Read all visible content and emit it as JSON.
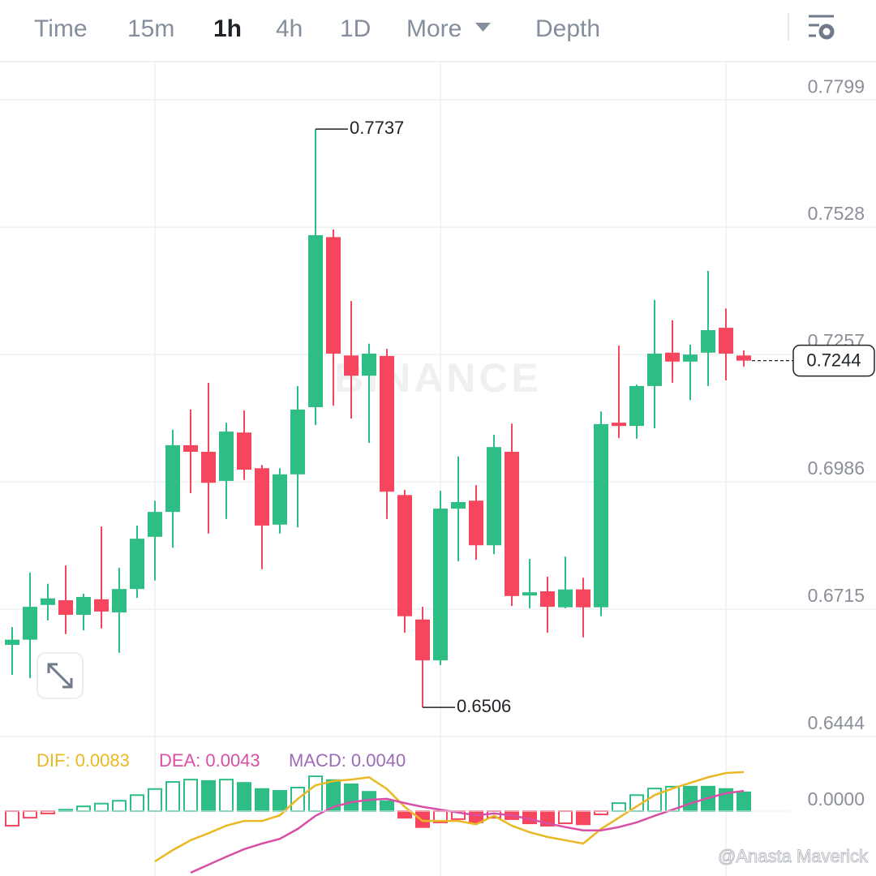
{
  "toolbar": {
    "tabs": [
      "Time",
      "15m",
      "1h",
      "4h",
      "1D",
      "More",
      "Depth"
    ],
    "active_tab": 2
  },
  "watermark": "BINANCE",
  "credit": "@Anasta Maverick",
  "chart_data": [
    {
      "type": "candlestick",
      "up_color": "#2ebd85",
      "down_color": "#f6465d",
      "ylim": [
        0.6444,
        0.7877
      ],
      "yticks": [
        0.6444,
        0.6715,
        0.6986,
        0.7257,
        0.7528,
        0.7799
      ],
      "grid": true,
      "open": [
        0.6639,
        0.665,
        0.6724,
        0.6734,
        0.6703,
        0.6736,
        0.6708,
        0.6758,
        0.6869,
        0.6922,
        0.7064,
        0.705,
        0.6988,
        0.7091,
        0.7015,
        0.6895,
        0.7002,
        0.7145,
        0.7507,
        0.7255,
        0.7212,
        0.7254,
        0.6958,
        0.6693,
        0.6606,
        0.6929,
        0.6946,
        0.6851,
        0.705,
        0.6744,
        0.6753,
        0.6719,
        0.6757,
        0.6719,
        0.7112,
        0.7105,
        0.719,
        0.7261,
        0.7242,
        0.7261,
        0.7314,
        0.7255
      ],
      "high": [
        0.6677,
        0.6793,
        0.6769,
        0.6808,
        0.6748,
        0.6891,
        0.6803,
        0.6893,
        0.6946,
        0.7097,
        0.714,
        0.7197,
        0.7112,
        0.7138,
        0.7022,
        0.7015,
        0.719,
        0.7737,
        0.7523,
        0.7371,
        0.728,
        0.7269,
        0.6969,
        0.672,
        0.6967,
        0.704,
        0.6979,
        0.7086,
        0.711,
        0.6822,
        0.6784,
        0.6827,
        0.6782,
        0.7136,
        0.7276,
        0.7193,
        0.7373,
        0.733,
        0.7278,
        0.7435,
        0.7355,
        0.7266
      ],
      "low": [
        0.6575,
        0.6568,
        0.6691,
        0.6662,
        0.667,
        0.6674,
        0.6622,
        0.6739,
        0.6776,
        0.6846,
        0.6962,
        0.6876,
        0.6907,
        0.699,
        0.68,
        0.6876,
        0.6889,
        0.7107,
        0.7148,
        0.7121,
        0.7069,
        0.6907,
        0.6665,
        0.6506,
        0.6596,
        0.6817,
        0.682,
        0.6832,
        0.6722,
        0.6717,
        0.6665,
        0.6717,
        0.6655,
        0.67,
        0.7079,
        0.7078,
        0.71,
        0.7197,
        0.716,
        0.719,
        0.7202,
        0.7231
      ],
      "close": [
        0.665,
        0.672,
        0.6738,
        0.6703,
        0.6741,
        0.671,
        0.6758,
        0.6865,
        0.6922,
        0.7064,
        0.705,
        0.6984,
        0.7093,
        0.7012,
        0.6893,
        0.7002,
        0.714,
        0.7511,
        0.7259,
        0.7212,
        0.7259,
        0.6965,
        0.67,
        0.6606,
        0.6929,
        0.6943,
        0.6851,
        0.706,
        0.6743,
        0.6751,
        0.672,
        0.6757,
        0.6719,
        0.7109,
        0.7105,
        0.719,
        0.7259,
        0.7242,
        0.7257,
        0.7309,
        0.7259,
        0.7244
      ]
    },
    {
      "type": "macd",
      "ylim": [
        -0.0138,
        0.0138
      ],
      "yticks": [
        {
          "value": 0,
          "label": "0.0000"
        }
      ],
      "series": [
        {
          "name": "DIF:",
          "color": "#e9b824",
          "values": [
            null,
            null,
            null,
            null,
            null,
            null,
            null,
            null,
            -0.0107,
            -0.0083,
            -0.0062,
            -0.0047,
            -0.0031,
            -0.0021,
            -0.0021,
            -0.0009,
            0.0026,
            0.0055,
            0.0064,
            0.0067,
            0.0072,
            0.0047,
            0.0009,
            -0.0021,
            -0.0021,
            -0.0021,
            -0.0028,
            -0.001,
            -0.0031,
            -0.0045,
            -0.0055,
            -0.0062,
            -0.0069,
            -0.0038,
            -0.0014,
            0.001,
            0.0034,
            0.0048,
            0.006,
            0.0072,
            0.0081,
            0.0083
          ]
        },
        {
          "name": "DEA:",
          "color": "#d94fa6",
          "values": [
            null,
            null,
            null,
            null,
            null,
            null,
            null,
            null,
            null,
            null,
            -0.0131,
            -0.0114,
            -0.0097,
            -0.0081,
            -0.0069,
            -0.0059,
            -0.0038,
            -0.001,
            0.0009,
            0.0019,
            0.0024,
            0.0026,
            0.0017,
            0.0009,
            0.0003,
            -0.0003,
            -0.0009,
            -0.0005,
            -0.0009,
            -0.0017,
            -0.0026,
            -0.0034,
            -0.0041,
            -0.0041,
            -0.0034,
            -0.0024,
            -0.001,
            0.0003,
            0.0016,
            0.0028,
            0.0038,
            0.0043
          ]
        }
      ],
      "histogram": {
        "name": "MACD:",
        "color": "#9b6bb8",
        "up_color": "#2ebd85",
        "down_color": "#f6465d",
        "values": [
          -0.0031,
          -0.0014,
          -0.0005,
          0.0003,
          0.001,
          0.0016,
          0.0022,
          0.0034,
          0.0047,
          0.0062,
          0.0067,
          0.0064,
          0.0067,
          0.006,
          0.0047,
          0.0043,
          0.005,
          0.0074,
          0.0066,
          0.0057,
          0.0041,
          0.0021,
          -0.0014,
          -0.0034,
          -0.0024,
          -0.0017,
          -0.0024,
          -0.0014,
          -0.0017,
          -0.0026,
          -0.0031,
          -0.0026,
          -0.0028,
          -0.0007,
          0.0017,
          0.0034,
          0.0048,
          0.0052,
          0.0052,
          0.0052,
          0.0047,
          0.004
        ],
        "value_labels": [
          null,
          null,
          null,
          null,
          null,
          null,
          null,
          null,
          null,
          null,
          null,
          null,
          null,
          null,
          null,
          null,
          null,
          null,
          null,
          null,
          null,
          null,
          null,
          null,
          null,
          null,
          null,
          null,
          null,
          null,
          null,
          null,
          null,
          null,
          null,
          null,
          null,
          null,
          null,
          null,
          null,
          "0.0040"
        ]
      }
    }
  ]
}
